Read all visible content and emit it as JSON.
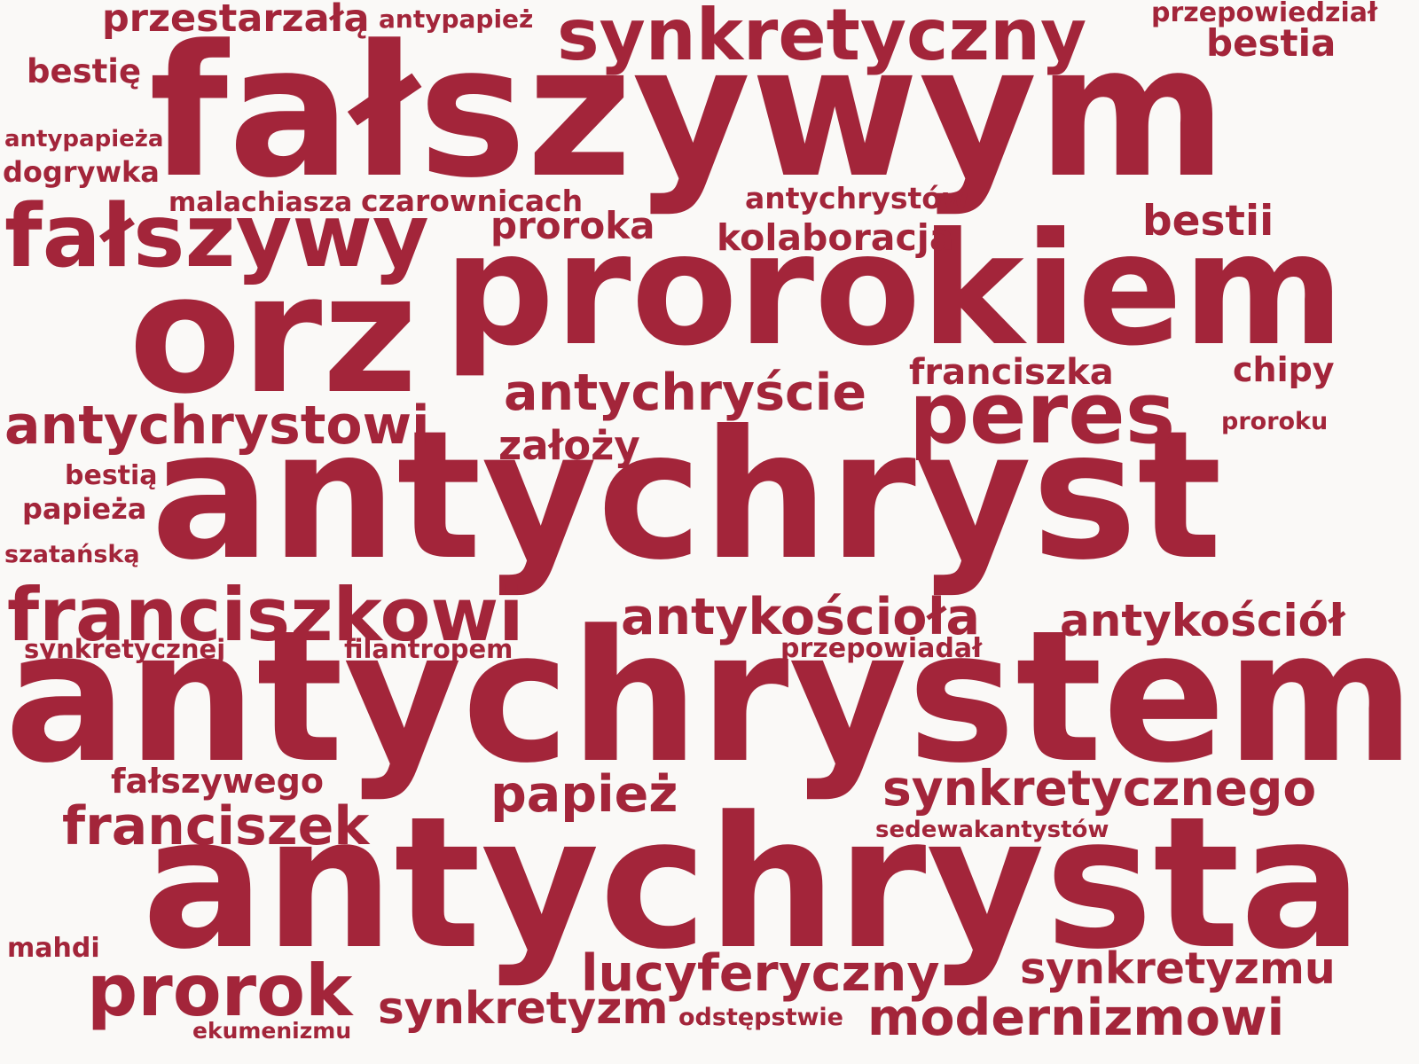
{
  "cloud": {
    "color": "#a3253a",
    "background": "#faf9f7",
    "words": [
      {
        "text": "fałszywym"
      },
      {
        "text": "prorokiem"
      },
      {
        "text": "antychryst"
      },
      {
        "text": "antychrystem"
      },
      {
        "text": "antychrysta"
      },
      {
        "text": "orz"
      },
      {
        "text": "synkretyczny"
      },
      {
        "text": "fałszywy"
      },
      {
        "text": "peres"
      },
      {
        "text": "franciszkowi"
      },
      {
        "text": "prorok"
      },
      {
        "text": "antychrystowi"
      },
      {
        "text": "antychryście"
      },
      {
        "text": "antykościoła"
      },
      {
        "text": "synkretycznego"
      },
      {
        "text": "franciszek"
      },
      {
        "text": "lucyferyczny"
      },
      {
        "text": "modernizmowi"
      },
      {
        "text": "papież"
      },
      {
        "text": "synkretyzm"
      },
      {
        "text": "synkretyzmu"
      },
      {
        "text": "antykościół"
      },
      {
        "text": "przestarzałą"
      },
      {
        "text": "bestia"
      },
      {
        "text": "bestii"
      },
      {
        "text": "franciszka"
      },
      {
        "text": "proroka"
      },
      {
        "text": "kolaboracja"
      },
      {
        "text": "założy"
      },
      {
        "text": "chipy"
      },
      {
        "text": "fałszywego"
      },
      {
        "text": "bestię"
      },
      {
        "text": "antychrystów"
      },
      {
        "text": "czarownicach"
      },
      {
        "text": "dogrywka"
      },
      {
        "text": "papieża"
      },
      {
        "text": "przepowiedział"
      },
      {
        "text": "malachiasza"
      },
      {
        "text": "mahdi"
      },
      {
        "text": "bestią"
      },
      {
        "text": "przepowiadał"
      },
      {
        "text": "antypapież"
      },
      {
        "text": "antypapieża"
      },
      {
        "text": "szatańską"
      },
      {
        "text": "synkretycznej"
      },
      {
        "text": "filantropem"
      },
      {
        "text": "sedewakantystów"
      },
      {
        "text": "odstępstwie"
      },
      {
        "text": "ekumenizmu"
      },
      {
        "text": "proroku"
      }
    ]
  }
}
